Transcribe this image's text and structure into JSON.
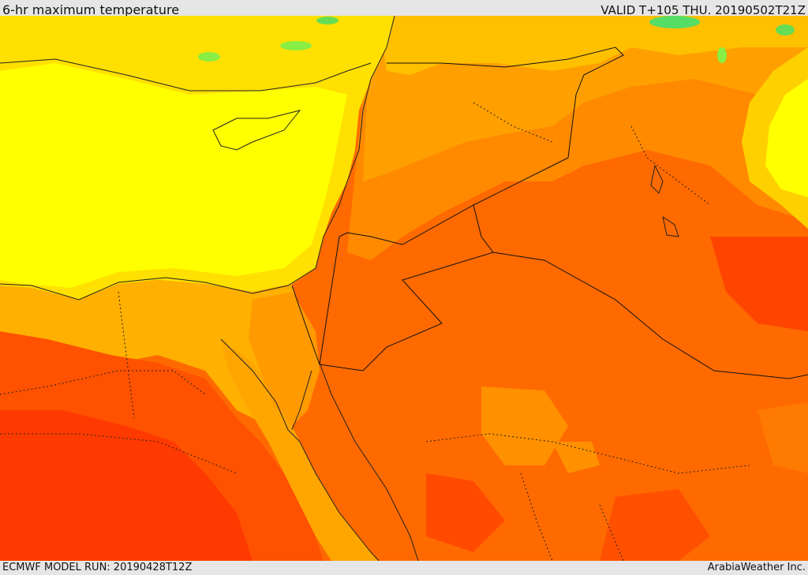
{
  "header": {
    "title": "6-hr maximum temperature",
    "valid": "VALID T+105 THU. 20190502T21Z"
  },
  "footer": {
    "model_run": "ECMWF MODEL RUN: 20190428T12Z",
    "credit": "ArabiaWeather Inc."
  },
  "colors": {
    "background": "#e6e6e6",
    "temp_bands": [
      "#ffff00",
      "#ffd700",
      "#ffb000",
      "#ff9000",
      "#ff6a00",
      "#ff4a00",
      "#ff2a00"
    ],
    "cool_spots": "#88ee44",
    "border_line": "#222222"
  }
}
